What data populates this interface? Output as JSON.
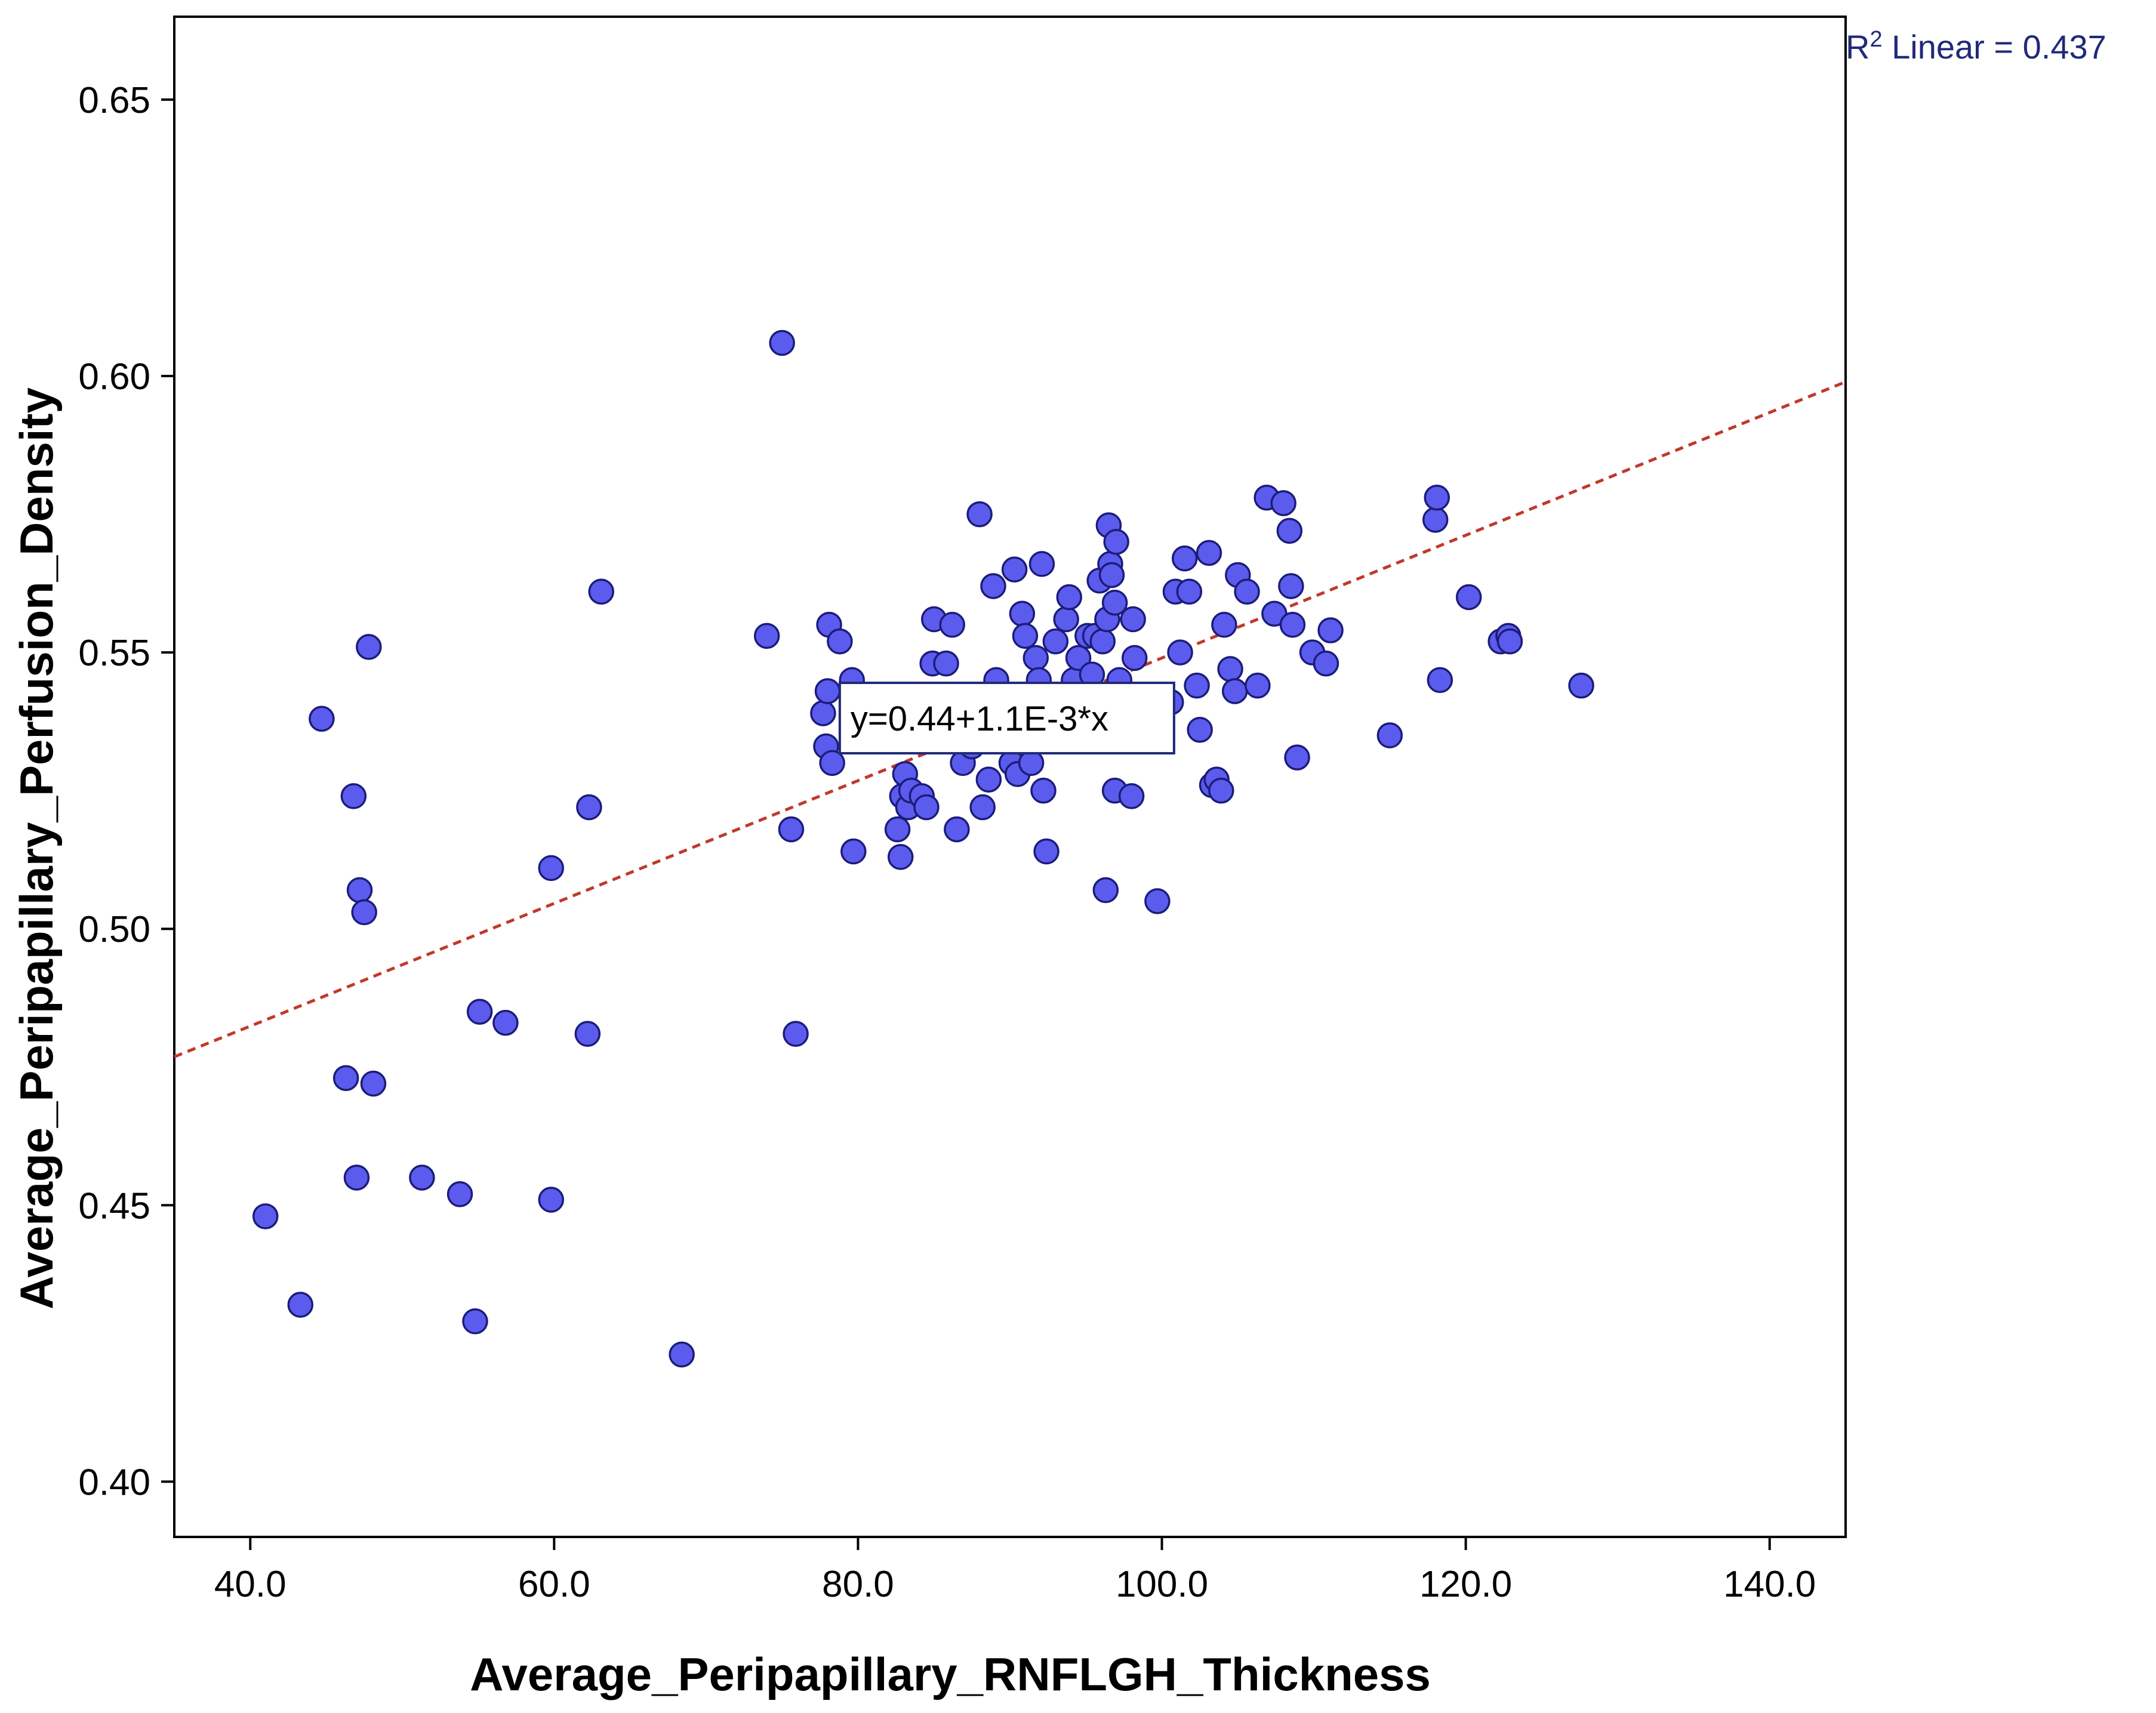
{
  "chart_data": {
    "type": "scatter",
    "xlabel": "Average_Peripapillary_RNFLGH_Thickness",
    "ylabel": "Average_Peripapillary_Perfusion_Density",
    "xlim": [
      35,
      145
    ],
    "ylim": [
      0.39,
      0.665
    ],
    "xticks": [
      40,
      60,
      80,
      100,
      120,
      140
    ],
    "yticks": [
      0.4,
      0.45,
      0.5,
      0.55,
      0.6,
      0.65
    ],
    "xtick_labels": [
      "40.0",
      "60.0",
      "80.0",
      "100.0",
      "120.0",
      "140.0"
    ],
    "ytick_labels": [
      "0.40",
      "0.45",
      "0.50",
      "0.55",
      "0.60",
      "0.65"
    ],
    "grid": false,
    "fit_line": {
      "intercept": 0.438,
      "slope": 0.00111,
      "equation_label": "y=0.44+1.1E-3*x",
      "r2_prefix": "R",
      "r2_sup": "2",
      "r2_text": " Linear = 0.437",
      "color": "#c0392b",
      "style": "dashed"
    },
    "marker_color": "#5b5bee",
    "marker_edge_color": "#1c1c7a",
    "r2_color": "#1f2a7a",
    "points": [
      [
        41.0,
        0.448
      ],
      [
        43.3,
        0.432
      ],
      [
        44.7,
        0.538
      ],
      [
        46.3,
        0.473
      ],
      [
        46.8,
        0.524
      ],
      [
        47.0,
        0.455
      ],
      [
        47.2,
        0.507
      ],
      [
        47.5,
        0.503
      ],
      [
        47.8,
        0.551
      ],
      [
        48.1,
        0.472
      ],
      [
        51.3,
        0.455
      ],
      [
        53.8,
        0.452
      ],
      [
        54.8,
        0.429
      ],
      [
        55.1,
        0.485
      ],
      [
        56.8,
        0.483
      ],
      [
        59.8,
        0.451
      ],
      [
        59.8,
        0.511
      ],
      [
        62.2,
        0.481
      ],
      [
        62.3,
        0.522
      ],
      [
        63.1,
        0.561
      ],
      [
        68.4,
        0.423
      ],
      [
        74.0,
        0.553
      ],
      [
        75.0,
        0.606
      ],
      [
        75.6,
        0.518
      ],
      [
        75.9,
        0.481
      ],
      [
        77.7,
        0.539
      ],
      [
        77.9,
        0.533
      ],
      [
        78.0,
        0.543
      ],
      [
        78.1,
        0.555
      ],
      [
        78.3,
        0.53
      ],
      [
        78.8,
        0.552
      ],
      [
        79.6,
        0.545
      ],
      [
        79.7,
        0.514
      ],
      [
        82.6,
        0.518
      ],
      [
        82.8,
        0.513
      ],
      [
        82.9,
        0.524
      ],
      [
        83.1,
        0.528
      ],
      [
        83.3,
        0.522
      ],
      [
        83.5,
        0.525
      ],
      [
        84.2,
        0.524
      ],
      [
        84.5,
        0.522
      ],
      [
        84.9,
        0.548
      ],
      [
        85.0,
        0.556
      ],
      [
        85.8,
        0.548
      ],
      [
        86.2,
        0.555
      ],
      [
        86.4,
        0.538
      ],
      [
        86.5,
        0.518
      ],
      [
        86.9,
        0.53
      ],
      [
        87.3,
        0.541
      ],
      [
        87.5,
        0.533
      ],
      [
        88.0,
        0.575
      ],
      [
        88.2,
        0.522
      ],
      [
        88.6,
        0.527
      ],
      [
        88.9,
        0.562
      ],
      [
        89.1,
        0.545
      ],
      [
        89.5,
        0.54
      ],
      [
        89.8,
        0.535
      ],
      [
        90.1,
        0.53
      ],
      [
        90.3,
        0.565
      ],
      [
        90.5,
        0.528
      ],
      [
        90.8,
        0.557
      ],
      [
        91.0,
        0.553
      ],
      [
        91.4,
        0.53
      ],
      [
        91.7,
        0.549
      ],
      [
        91.9,
        0.545
      ],
      [
        92.1,
        0.566
      ],
      [
        92.2,
        0.525
      ],
      [
        92.4,
        0.514
      ],
      [
        92.8,
        0.541
      ],
      [
        93.0,
        0.552
      ],
      [
        93.4,
        0.535
      ],
      [
        93.7,
        0.556
      ],
      [
        93.9,
        0.56
      ],
      [
        94.2,
        0.545
      ],
      [
        94.5,
        0.549
      ],
      [
        94.8,
        0.54
      ],
      [
        95.1,
        0.553
      ],
      [
        95.4,
        0.546
      ],
      [
        95.6,
        0.553
      ],
      [
        95.9,
        0.563
      ],
      [
        96.1,
        0.552
      ],
      [
        96.3,
        0.507
      ],
      [
        96.4,
        0.556
      ],
      [
        96.5,
        0.573
      ],
      [
        96.6,
        0.566
      ],
      [
        96.7,
        0.564
      ],
      [
        96.9,
        0.525
      ],
      [
        96.9,
        0.559
      ],
      [
        97.0,
        0.57
      ],
      [
        97.2,
        0.545
      ],
      [
        97.5,
        0.54
      ],
      [
        98.0,
        0.524
      ],
      [
        98.1,
        0.556
      ],
      [
        98.2,
        0.549
      ],
      [
        98.4,
        0.538
      ],
      [
        98.6,
        0.535
      ],
      [
        99.7,
        0.505
      ],
      [
        100.6,
        0.541
      ],
      [
        100.9,
        0.561
      ],
      [
        101.2,
        0.55
      ],
      [
        101.5,
        0.567
      ],
      [
        101.8,
        0.561
      ],
      [
        102.3,
        0.544
      ],
      [
        102.5,
        0.536
      ],
      [
        103.1,
        0.568
      ],
      [
        103.3,
        0.526
      ],
      [
        103.6,
        0.527
      ],
      [
        103.9,
        0.525
      ],
      [
        104.1,
        0.555
      ],
      [
        104.5,
        0.547
      ],
      [
        104.8,
        0.543
      ],
      [
        105.0,
        0.564
      ],
      [
        105.6,
        0.561
      ],
      [
        106.3,
        0.544
      ],
      [
        106.9,
        0.578
      ],
      [
        107.4,
        0.557
      ],
      [
        108.0,
        0.577
      ],
      [
        108.4,
        0.572
      ],
      [
        108.5,
        0.562
      ],
      [
        108.6,
        0.555
      ],
      [
        108.9,
        0.531
      ],
      [
        109.9,
        0.55
      ],
      [
        110.8,
        0.548
      ],
      [
        111.1,
        0.554
      ],
      [
        115.0,
        0.535
      ],
      [
        118.0,
        0.574
      ],
      [
        118.1,
        0.578
      ],
      [
        118.3,
        0.545
      ],
      [
        120.2,
        0.56
      ],
      [
        122.3,
        0.552
      ],
      [
        122.8,
        0.553
      ],
      [
        122.9,
        0.552
      ],
      [
        127.6,
        0.544
      ]
    ]
  }
}
